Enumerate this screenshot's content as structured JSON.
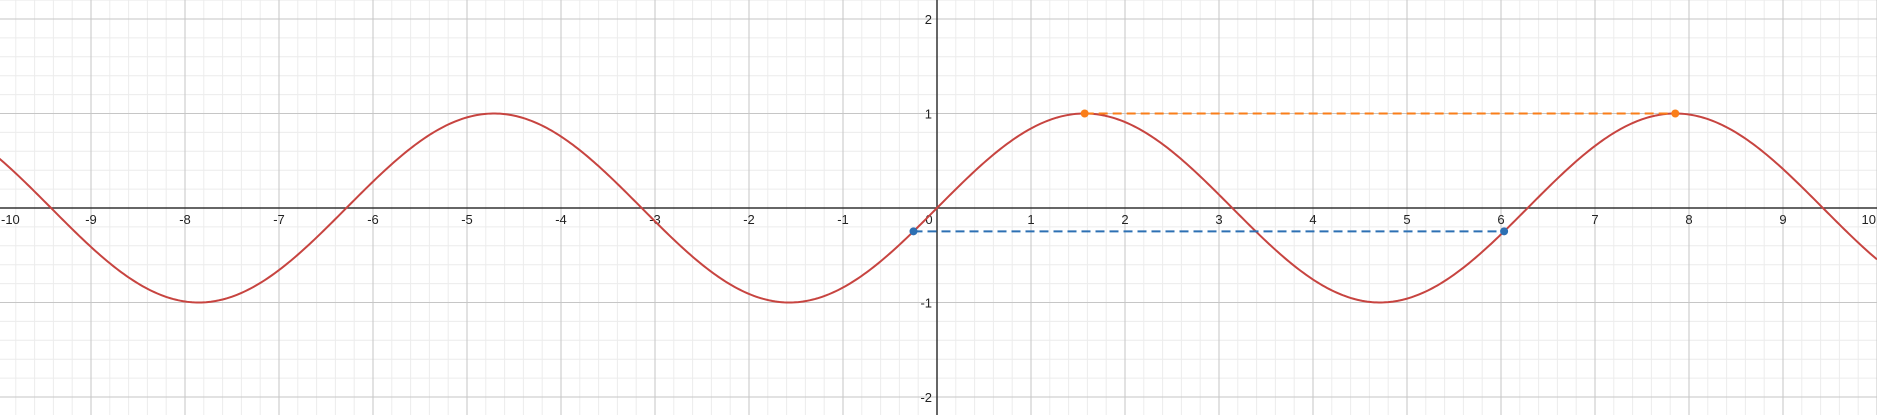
{
  "chart_data": {
    "type": "line",
    "title": "",
    "xlabel": "",
    "ylabel": "",
    "xlim": [
      -10,
      10
    ],
    "ylim": [
      -2.2,
      2.2
    ],
    "grid": true,
    "minor_grid_step": 0.2,
    "x_ticks": [
      -10,
      -9,
      -8,
      -7,
      -6,
      -5,
      -4,
      -3,
      -2,
      -1,
      0,
      1,
      2,
      3,
      4,
      5,
      6,
      7,
      8,
      9,
      10
    ],
    "x_tick_labels": [
      "-10",
      "-9",
      "-8",
      "-7",
      "-6",
      "-5",
      "-4",
      "-3",
      "-2",
      "-1",
      "0",
      "1",
      "2",
      "3",
      "4",
      "5",
      "6",
      "7",
      "8",
      "9",
      "10"
    ],
    "y_ticks": [
      -2,
      -1,
      1,
      2
    ],
    "y_tick_labels": [
      "-2",
      "-1",
      "1",
      "2"
    ],
    "series": [
      {
        "kind": "function",
        "function": "sin",
        "x_range": [
          -10,
          10
        ],
        "samples": 801,
        "color": "#c74440",
        "dashed": false
      },
      {
        "kind": "segment",
        "x": [
          1.571,
          7.854
        ],
        "y": [
          1,
          1
        ],
        "color": "#fa7e19",
        "dashed": true,
        "markers": true
      },
      {
        "kind": "segment",
        "x": [
          -0.25,
          6.033
        ],
        "y": [
          -0.247,
          -0.247
        ],
        "color": "#2d70b3",
        "dashed": true,
        "markers": true
      }
    ]
  }
}
